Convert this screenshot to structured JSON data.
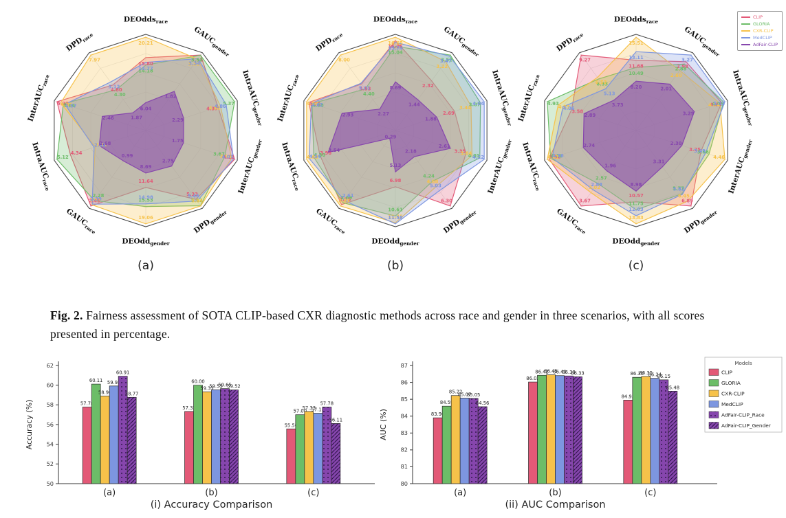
{
  "caption": {
    "label": "Fig. 2.",
    "text": " Fairness assessment of SOTA CLIP-based CXR diagnostic methods across race and gender in three scenarios, with all scores presented in percentage."
  },
  "colors": {
    "CLIP": "#e35977",
    "GLORIA": "#6cbd68",
    "CXR-CLIP": "#f6c24a",
    "MedCLIP": "#7d96e0",
    "AdFair-CLIP": "#8646ad",
    "AdFair-CLIP_Race": "#8646ad",
    "AdFair-CLIP_Gender": "#8646ad",
    "grid": "#e6e6e6",
    "outline": "#4a4a4a",
    "axis": "#333333"
  },
  "radar_axes": [
    {
      "base": "DEOdds",
      "sub": "race"
    },
    {
      "base": "GAUC",
      "sub": "gender"
    },
    {
      "base": "IntraAUC",
      "sub": "gender"
    },
    {
      "base": "InterAUC",
      "sub": "gender"
    },
    {
      "base": "DPD",
      "sub": "gender"
    },
    {
      "base": "DEOdd",
      "sub": "gender"
    },
    {
      "base": "GAUC",
      "sub": "race"
    },
    {
      "base": "IntraAUC",
      "sub": "race"
    },
    {
      "base": "InterAUC",
      "sub": "race"
    },
    {
      "base": "DPD",
      "sub": "race"
    }
  ],
  "radar_legend": {
    "entries": [
      "CLIP",
      "GLORIA",
      "CXR-CLIP",
      "MedCLIP",
      "AdFair-CLIP"
    ]
  },
  "bar_legend": {
    "title": "Models",
    "entries": [
      "CLIP",
      "GLORIA",
      "CXR-CLIP",
      "MedCLIP",
      "AdFair-CLIP_Race",
      "AdFair-CLIP_Gender"
    ]
  },
  "chart_data": [
    {
      "type": "radar",
      "id": "a",
      "sublabel": "(a)",
      "axes_ref": "radar_axes",
      "series": [
        {
          "name": "CLIP",
          "values": [
            15.8,
            3.51,
            4.37,
            4.12,
            5.33,
            11.64,
            2.45,
            4.34,
            5.02,
            4.8
          ]
        },
        {
          "name": "GLORIA",
          "values": [
            14.18,
            3.5,
            5.37,
            3.67,
            5.82,
            15.53,
            2.28,
            5.12,
            4.66,
            4.3
          ]
        },
        {
          "name": "CXR-CLIP",
          "values": [
            20.21,
            3.32,
            4.52,
            3.98,
            5.84,
            19.06,
            2.41,
            2.91,
            4.81,
            7.97
          ]
        },
        {
          "name": "MedCLIP",
          "values": [
            14.77,
            3.34,
            4.86,
            4.07,
            5.46,
            14.98,
            2.39,
            2.98,
            4.57,
            5.12
          ]
        },
        {
          "name": "AdFair-CLIP",
          "values": [
            6.04,
            1.82,
            2.29,
            1.75,
            2.75,
            8.69,
            0.99,
            2.68,
            2.46,
            1.87
          ]
        }
      ]
    },
    {
      "type": "radar",
      "id": "b",
      "sublabel": "(b)",
      "axes_ref": "radar_axes",
      "series": [
        {
          "name": "CLIP",
          "values": [
            16.05,
            2.32,
            2.69,
            3.35,
            6.3,
            6.98,
            2.76,
            3.98,
            4.76,
            4.93
          ]
        },
        {
          "name": "GLORIA",
          "values": [
            15.04,
            3.52,
            3.87,
            4.01,
            4.24,
            10.61,
            2.69,
            4.3,
            4.58,
            4.4
          ]
        },
        {
          "name": "CXR-CLIP",
          "values": [
            16.65,
            3.22,
            3.44,
            3.64,
            4.68,
            11.45,
            2.81,
            4.68,
            4.88,
            8.0
          ]
        },
        {
          "name": "MedCLIP",
          "values": [
            15.74,
            3.47,
            4.04,
            4.22,
            5.03,
            11.58,
            2.61,
            4.54,
            4.62,
            5.01
          ]
        },
        {
          "name": "AdFair-CLIP",
          "values": [
            8.69,
            1.44,
            1.88,
            2.61,
            2.18,
            5.13,
            0.29,
            3.54,
            2.93,
            2.27
          ]
        }
      ]
    },
    {
      "type": "radar",
      "id": "c",
      "sublabel": "(c)",
      "axes_ref": "radar_axes",
      "series": [
        {
          "name": "CLIP",
          "values": [
            11.68,
            2.98,
            4.84,
            3.25,
            6.89,
            10.57,
            3.67,
            4.52,
            3.58,
            9.27
          ]
        },
        {
          "name": "GLORIA",
          "values": [
            10.49,
            2.88,
            4.95,
            3.66,
            5.77,
            11.75,
            2.57,
            4.44,
            4.93,
            6.33
          ]
        },
        {
          "name": "CXR-CLIP",
          "values": [
            15.51,
            2.6,
            4.74,
            4.46,
            6.45,
            13.83,
            3.02,
            4.61,
            4.33,
            6.53
          ]
        },
        {
          "name": "MedCLIP",
          "values": [
            13.11,
            3.27,
            5.02,
            3.49,
            5.82,
            12.63,
            2.88,
            4.36,
            4.06,
            5.13
          ]
        },
        {
          "name": "AdFair-CLIP",
          "values": [
            8.2,
            2.01,
            3.29,
            2.3,
            3.31,
            8.98,
            1.96,
            2.74,
            2.89,
            3.73
          ]
        }
      ]
    },
    {
      "type": "bar",
      "id": "accuracy",
      "title": "(i) Accuracy Comparison",
      "ylabel": "Accuracy (%)",
      "ylim": [
        50,
        62
      ],
      "ytick_step": 2,
      "categories": [
        "(a)",
        "(b)",
        "(c)"
      ],
      "series": [
        {
          "name": "CLIP",
          "pattern": "solid",
          "values": [
            57.78,
            57.33,
            55.56
          ]
        },
        {
          "name": "GLORIA",
          "pattern": "solid",
          "values": [
            60.11,
            60.0,
            57.0
          ]
        },
        {
          "name": "CXR-CLIP",
          "pattern": "solid",
          "values": [
            58.9,
            59.33,
            57.33
          ]
        },
        {
          "name": "MedCLIP",
          "pattern": "solid",
          "values": [
            59.92,
            59.53,
            57.15
          ]
        },
        {
          "name": "AdFair-CLIP_Race",
          "pattern": "dots",
          "values": [
            60.91,
            59.65,
            57.78
          ]
        },
        {
          "name": "AdFair-CLIP_Gender",
          "pattern": "hatch",
          "values": [
            58.77,
            59.52,
            56.11
          ]
        }
      ]
    },
    {
      "type": "bar",
      "id": "auc",
      "title": "(ii) AUC Comparison",
      "ylabel": "AUC (%)",
      "ylim": [
        80,
        87
      ],
      "ytick_step": 1,
      "categories": [
        "(a)",
        "(b)",
        "(c)"
      ],
      "legend": true,
      "series": [
        {
          "name": "CLIP",
          "pattern": "solid",
          "values": [
            83.9,
            86.02,
            84.95
          ]
        },
        {
          "name": "GLORIA",
          "pattern": "solid",
          "values": [
            84.59,
            86.42,
            86.3
          ]
        },
        {
          "name": "CXR-CLIP",
          "pattern": "solid",
          "values": [
            85.22,
            86.45,
            86.35
          ]
        },
        {
          "name": "MedCLIP",
          "pattern": "solid",
          "values": [
            85.07,
            86.4,
            86.24
          ]
        },
        {
          "name": "AdFair-CLIP_Race",
          "pattern": "dots",
          "values": [
            85.05,
            86.38,
            86.15
          ]
        },
        {
          "name": "AdFair-CLIP_Gender",
          "pattern": "hatch",
          "values": [
            84.56,
            86.33,
            85.48
          ]
        }
      ]
    }
  ]
}
